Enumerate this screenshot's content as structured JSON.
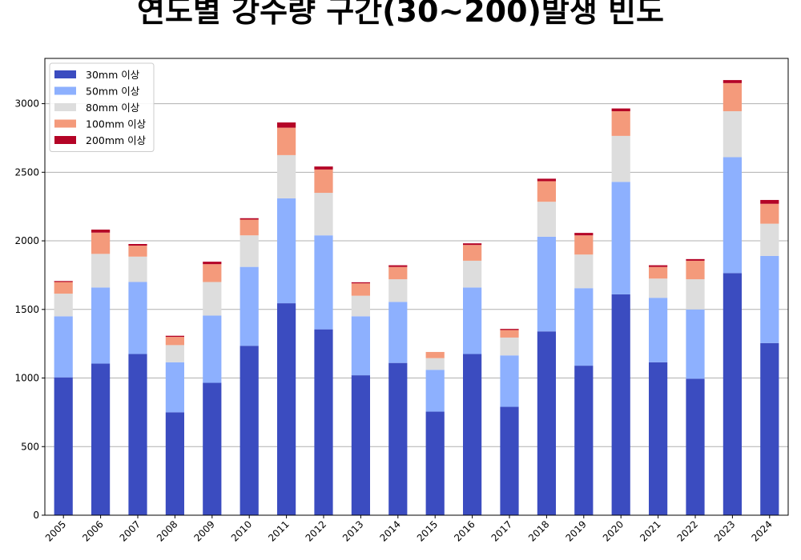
{
  "chart_data": {
    "type": "bar",
    "stacked": true,
    "title": "연도별 강수량 구간(30~200)발생 빈도",
    "xlabel": "",
    "ylabel": "",
    "ylim": [
      0,
      3330
    ],
    "yticks": [
      0,
      500,
      1000,
      1500,
      2000,
      2500,
      3000
    ],
    "grid": "y",
    "legend_position": "top-left",
    "categories": [
      "2005",
      "2006",
      "2007",
      "2008",
      "2009",
      "2010",
      "2011",
      "2012",
      "2013",
      "2014",
      "2015",
      "2016",
      "2017",
      "2018",
      "2019",
      "2020",
      "2021",
      "2022",
      "2023",
      "2024"
    ],
    "series": [
      {
        "name": "30mm 이상",
        "color": "#3b4cc0",
        "values": [
          1005,
          1105,
          1175,
          750,
          965,
          1235,
          1545,
          1355,
          1020,
          1110,
          755,
          1175,
          790,
          1340,
          1090,
          1610,
          1115,
          995,
          1765,
          1255
        ]
      },
      {
        "name": "50mm 이상",
        "color": "#8db0fe",
        "values": [
          445,
          555,
          525,
          365,
          490,
          575,
          765,
          685,
          430,
          445,
          305,
          485,
          375,
          690,
          565,
          820,
          470,
          505,
          845,
          635
        ]
      },
      {
        "name": "80mm 이상",
        "color": "#dddddd",
        "values": [
          165,
          245,
          185,
          125,
          245,
          230,
          315,
          310,
          150,
          165,
          85,
          195,
          130,
          255,
          245,
          335,
          140,
          220,
          335,
          235
        ]
      },
      {
        "name": "100mm 이상",
        "color": "#f49a7b",
        "values": [
          85,
          155,
          80,
          60,
          130,
          115,
          200,
          170,
          90,
          90,
          45,
          115,
          55,
          150,
          140,
          180,
          85,
          135,
          205,
          145
        ]
      },
      {
        "name": "200mm 이상",
        "color": "#b40426",
        "values": [
          7,
          22,
          12,
          8,
          18,
          10,
          38,
          22,
          8,
          12,
          0,
          12,
          8,
          18,
          18,
          20,
          12,
          12,
          22,
          28
        ]
      }
    ]
  }
}
